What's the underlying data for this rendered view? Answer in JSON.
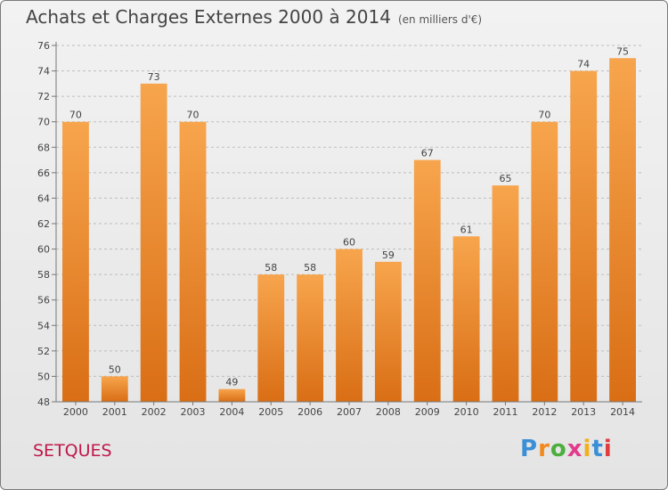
{
  "header": {
    "title": "Achats et Charges Externes 2000 à 2014",
    "subtitle": "(en milliers d'€)"
  },
  "footer": {
    "place": "SETQUES",
    "logo_text": "Proxiti"
  },
  "colors": {
    "bar_light": "#f7a54d",
    "bar_dark": "#d96e15",
    "place_text": "#c0184a",
    "grid": "#bdbdbd",
    "logo": [
      "#3b8fd6",
      "#f08a1c",
      "#4cae3c",
      "#e23b8d",
      "#f0b11c",
      "#3b8fd6",
      "#e23b3b"
    ]
  },
  "chart_data": {
    "type": "bar",
    "title": "Achats et Charges Externes 2000 à 2014",
    "subtitle": "(en milliers d'€)",
    "xlabel": "",
    "ylabel": "",
    "categories": [
      "2000",
      "2001",
      "2002",
      "2003",
      "2004",
      "2005",
      "2006",
      "2007",
      "2008",
      "2009",
      "2010",
      "2011",
      "2012",
      "2013",
      "2014"
    ],
    "values": [
      70,
      50,
      73,
      70,
      49,
      58,
      58,
      60,
      59,
      67,
      61,
      65,
      70,
      74,
      75
    ],
    "ylim": [
      48,
      76
    ],
    "yticks": [
      48,
      50,
      52,
      54,
      56,
      58,
      60,
      62,
      64,
      66,
      68,
      70,
      72,
      74,
      76
    ],
    "grid": true,
    "data_labels": true
  }
}
